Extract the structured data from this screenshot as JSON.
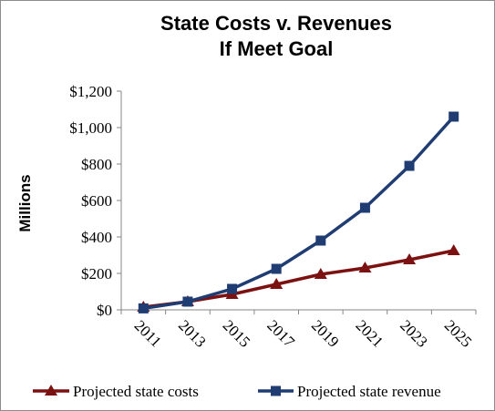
{
  "chart_data": {
    "type": "line",
    "title": [
      "State Costs v. Revenues",
      "If Meet Goal"
    ],
    "ylabel": "Millions",
    "xlabel": "",
    "x": [
      "2011",
      "2013",
      "2015",
      "2017",
      "2019",
      "2021",
      "2023",
      "2025"
    ],
    "ylim": [
      0,
      1200
    ],
    "yticks": [
      0,
      200,
      400,
      600,
      800,
      1000,
      1200
    ],
    "ytick_labels": [
      "$0",
      "$200",
      "$400",
      "$600",
      "$800",
      "$1,000",
      "$1,200"
    ],
    "grid": false,
    "legend_position": "bottom",
    "series": [
      {
        "name": "Projected state costs",
        "color": "#7b1111",
        "marker": "triangle",
        "values": [
          15,
          45,
          85,
          140,
          195,
          230,
          275,
          325
        ]
      },
      {
        "name": "Projected state revenue",
        "color": "#1f3d73",
        "marker": "square",
        "values": [
          8,
          45,
          115,
          225,
          380,
          560,
          790,
          1060
        ]
      }
    ]
  }
}
